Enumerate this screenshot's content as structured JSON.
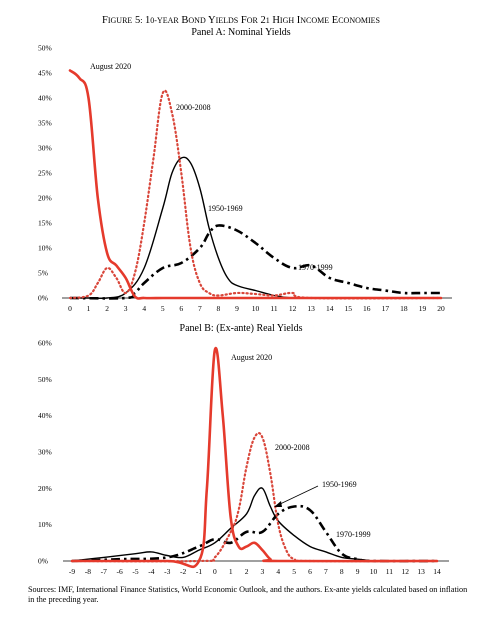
{
  "figure": {
    "title": "FIGURE 5: 10-YEAR BOND YIELDS FOR 21 HIGH INCOME ECONOMIES",
    "source": "Sources: IMF, International Finance Statistics, World Economic Outlook, and the authors. Ex-ante yields calculated based on inflation in the preceding year."
  },
  "colors": {
    "aug2020": "#e53a2c",
    "p2000": "#d9463a",
    "p1950": "#000000",
    "p1970": "#000000"
  },
  "chart_data": [
    {
      "type": "line",
      "title": "Panel A: Nominal Yields",
      "xticks": [
        "0",
        "1",
        "2",
        "3",
        "4",
        "5",
        "6",
        "7",
        "8",
        "9",
        "10",
        "11",
        "12",
        "13",
        "14",
        "15",
        "16",
        "17",
        "18",
        "19",
        "20"
      ],
      "yticks": [
        "0%",
        "5%",
        "10%",
        "15%",
        "20%",
        "25%",
        "30%",
        "35%",
        "40%",
        "45%",
        "50%"
      ],
      "xlim": [
        0,
        20
      ],
      "ylim": [
        0,
        50
      ],
      "series": [
        {
          "name": "August 2020",
          "style": "solid-red",
          "x": [
            0,
            0.5,
            1,
            1.5,
            2,
            2.5,
            3,
            3.5,
            4,
            5,
            6,
            10,
            20
          ],
          "y": [
            45.5,
            44,
            40,
            20,
            9,
            6.5,
            4,
            0.3,
            0,
            0,
            0,
            0,
            0
          ]
        },
        {
          "name": "2000-2008",
          "style": "dotted-red",
          "x": [
            0,
            1,
            1.5,
            2,
            2.5,
            3,
            3.5,
            4,
            4.5,
            5,
            5.5,
            6,
            6.5,
            7,
            7.5,
            8,
            9,
            10,
            11,
            12,
            13,
            20
          ],
          "y": [
            0,
            0.5,
            3,
            6,
            4,
            1,
            5,
            15,
            28,
            41,
            37,
            25,
            10,
            3,
            1,
            0.5,
            1,
            0.8,
            0.5,
            1,
            0,
            0
          ]
        },
        {
          "name": "1950-1969",
          "style": "solid-black",
          "x": [
            0,
            1,
            2,
            3,
            4,
            5,
            5.5,
            6,
            6.5,
            7,
            7.5,
            8,
            8.5,
            9,
            10,
            11,
            12,
            13,
            14,
            20
          ],
          "y": [
            0,
            0,
            0,
            1,
            6,
            18,
            25,
            28,
            27,
            22,
            14,
            8,
            4,
            2.5,
            1.5,
            0.5,
            0,
            0,
            0,
            0
          ]
        },
        {
          "name": "1970-1999",
          "style": "dashdot-black",
          "x": [
            0,
            3,
            3.5,
            4,
            5,
            6,
            7,
            7.5,
            8,
            9,
            10,
            11,
            12,
            13,
            14,
            15,
            16,
            17,
            18,
            19,
            20
          ],
          "y": [
            0,
            0,
            1,
            3,
            6,
            7,
            10,
            13,
            14.5,
            13.5,
            11,
            8,
            6,
            6.5,
            4,
            3,
            2,
            1.5,
            1,
            1,
            1
          ]
        }
      ],
      "annotations": [
        "August 2020",
        "2000-2008",
        "1950-1969",
        "1970-1999"
      ]
    },
    {
      "type": "line",
      "title": "Panel B: (Ex-ante) Real Yields",
      "xticks": [
        "-9",
        "-8",
        "-7",
        "-6",
        "-5",
        "-4",
        "-3",
        "-2",
        "-1",
        "0",
        "1",
        "2",
        "3",
        "4",
        "5",
        "6",
        "7",
        "8",
        "9",
        "10",
        "11",
        "12",
        "13",
        "14"
      ],
      "yticks": [
        "0%",
        "10%",
        "20%",
        "30%",
        "40%",
        "50%",
        "60%"
      ],
      "xlim": [
        -9,
        14
      ],
      "ylim": [
        0,
        60
      ],
      "series": [
        {
          "name": "August 2020",
          "style": "solid-red",
          "x": [
            -9,
            -3,
            -1,
            -0.5,
            0,
            0.5,
            1,
            1.5,
            2,
            2.5,
            3,
            3.5,
            4,
            14
          ],
          "y": [
            0,
            0,
            0,
            20,
            58,
            40,
            12,
            4,
            4,
            5,
            3,
            0.5,
            0,
            0
          ]
        },
        {
          "name": "2000-2008",
          "style": "dotted-red",
          "x": [
            -9,
            -1,
            0,
            1,
            1.5,
            2,
            2.5,
            3,
            3.5,
            4,
            4.5,
            5,
            6,
            14
          ],
          "y": [
            0,
            0,
            1,
            8,
            14,
            26,
            34,
            34,
            24,
            10,
            3,
            0.5,
            0,
            0
          ]
        },
        {
          "name": "1950-1969",
          "style": "solid-black",
          "x": [
            -9,
            -7,
            -5,
            -4,
            -3,
            -2,
            -1,
            0,
            1,
            2,
            2.5,
            3,
            3.5,
            4,
            5,
            6,
            7,
            8,
            9,
            10,
            11,
            14
          ],
          "y": [
            0,
            1,
            2,
            2.5,
            1.5,
            1,
            3,
            5,
            9,
            13,
            18,
            20,
            15,
            11,
            7,
            4,
            2.5,
            1,
            0.5,
            0,
            0,
            0
          ]
        },
        {
          "name": "1970-1999",
          "style": "dashdot-black",
          "x": [
            -9,
            -6,
            -3,
            -1,
            0,
            1,
            2,
            3,
            4,
            5,
            6,
            7,
            8,
            9,
            10,
            14
          ],
          "y": [
            0,
            0.5,
            1,
            4,
            6,
            5,
            8,
            8,
            13,
            15,
            14,
            8,
            2,
            0.5,
            0,
            0
          ]
        }
      ],
      "annotations": [
        "August 2020",
        "2000-2008",
        "1950-1969",
        "1970-1999"
      ]
    }
  ]
}
